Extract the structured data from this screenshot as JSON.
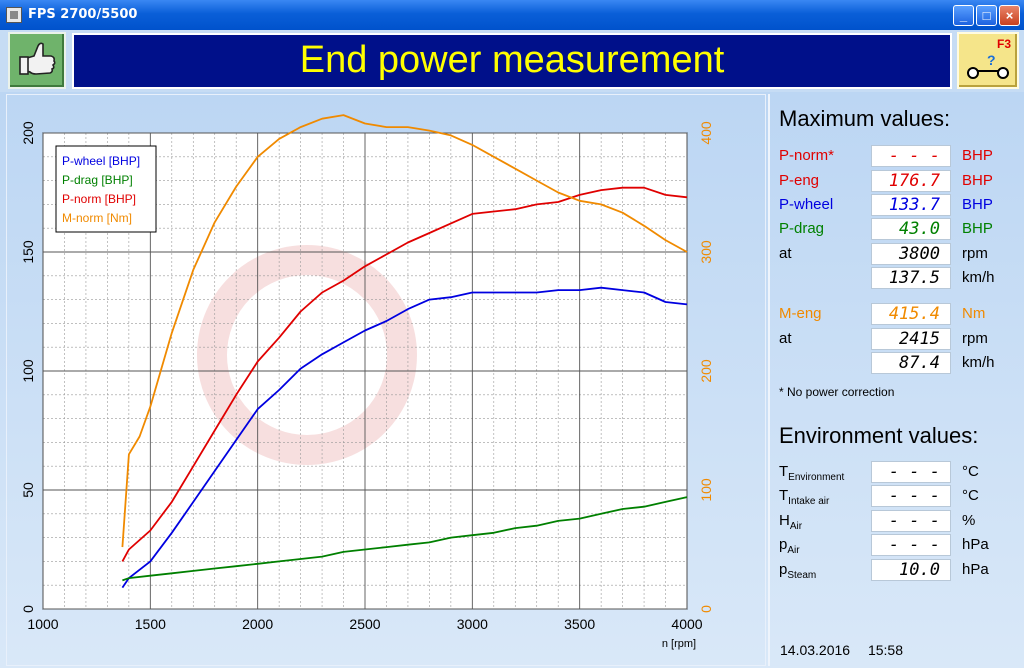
{
  "window": {
    "title": "FPS 2700/5500"
  },
  "header": {
    "title": "End power measurement",
    "f3_label": "F3"
  },
  "colors": {
    "p_wheel": "#0000e0",
    "p_drag": "#008000",
    "p_norm": "#e00000",
    "m_norm": "#f08a00",
    "banner_bg": "#00108a",
    "banner_text": "#ffff00"
  },
  "icons": {
    "thumb": "thumbs-up-icon",
    "f3": "roller-dyno-icon"
  },
  "max_values": {
    "title": "Maximum values:",
    "rows": [
      {
        "label": "P-norm*",
        "value": "- - - - .-",
        "unit": "BHP",
        "color": "red"
      },
      {
        "label": "P-eng",
        "value": "176.7",
        "unit": "BHP",
        "color": "red"
      },
      {
        "label": "P-wheel",
        "value": "133.7",
        "unit": "BHP",
        "color": "blue"
      },
      {
        "label": "P-drag",
        "value": "43.0",
        "unit": "BHP",
        "color": "green"
      },
      {
        "label": "at",
        "value": "3800",
        "unit": "rpm",
        "color": "black"
      },
      {
        "label": "",
        "value": "137.5",
        "unit": "km/h",
        "color": "black"
      },
      {
        "label": "M-eng",
        "value": "415.4",
        "unit": "Nm",
        "color": "orange"
      },
      {
        "label": "at",
        "value": "2415",
        "unit": "rpm",
        "color": "black"
      },
      {
        "label": "",
        "value": "87.4",
        "unit": "km/h",
        "color": "black"
      }
    ],
    "note": "* No power correction"
  },
  "environment": {
    "title": "Environment values:",
    "rows": [
      {
        "label": "T",
        "sub": "Environment",
        "value": "- - - - .-",
        "unit": "°C"
      },
      {
        "label": "T",
        "sub": "Intake air",
        "value": "- - - - .-",
        "unit": "°C"
      },
      {
        "label": "H",
        "sub": "Air",
        "value": "- - - - .-",
        "unit": "%"
      },
      {
        "label": "p",
        "sub": "Air",
        "value": "- - - - .-",
        "unit": "hPa"
      },
      {
        "label": "p",
        "sub": "Steam",
        "value": "10.0",
        "unit": "hPa"
      }
    ]
  },
  "status": {
    "date": "14.03.2016",
    "time": "15:58"
  },
  "chart_data": {
    "type": "line",
    "xlabel": "n [rpm]",
    "xlim": [
      1000,
      4000
    ],
    "ylim_left": [
      0,
      200
    ],
    "ylim_right": [
      0,
      400
    ],
    "x_ticks": [
      1000,
      1500,
      2000,
      2500,
      3000,
      3500,
      4000
    ],
    "y_left_ticks": [
      0,
      50,
      100,
      150,
      200
    ],
    "y_right_ticks": [
      0,
      100,
      200,
      300,
      400
    ],
    "grid": true,
    "legend_position": "top-left",
    "series": [
      {
        "name": "P-wheel [BHP]",
        "axis": "left",
        "color": "#0000e0",
        "x": [
          1370,
          1400,
          1500,
          1600,
          1700,
          1800,
          1900,
          2000,
          2100,
          2200,
          2300,
          2400,
          2500,
          2600,
          2700,
          2800,
          2900,
          3000,
          3100,
          3200,
          3300,
          3400,
          3500,
          3600,
          3700,
          3800,
          3900,
          4000
        ],
        "y": [
          9,
          13,
          20,
          32,
          45,
          58,
          71,
          84,
          92,
          101,
          107,
          112,
          117,
          121,
          126,
          130,
          131,
          133,
          133,
          133,
          133,
          134,
          134,
          135,
          134,
          133,
          129,
          128
        ]
      },
      {
        "name": "P-drag [BHP]",
        "axis": "left",
        "color": "#008000",
        "x": [
          1370,
          1400,
          1500,
          1600,
          1700,
          1800,
          1900,
          2000,
          2100,
          2200,
          2300,
          2400,
          2500,
          2600,
          2700,
          2800,
          2900,
          3000,
          3100,
          3200,
          3300,
          3400,
          3500,
          3600,
          3700,
          3800,
          3900,
          4000
        ],
        "y": [
          12,
          13,
          14,
          15,
          16,
          17,
          18,
          19,
          20,
          21,
          22,
          24,
          25,
          26,
          27,
          28,
          30,
          31,
          32,
          34,
          35,
          37,
          38,
          40,
          42,
          43,
          45,
          47
        ]
      },
      {
        "name": "P-norm [BHP]",
        "axis": "left",
        "color": "#e00000",
        "x": [
          1370,
          1400,
          1500,
          1600,
          1700,
          1800,
          1900,
          2000,
          2100,
          2200,
          2300,
          2400,
          2500,
          2600,
          2700,
          2800,
          2900,
          3000,
          3100,
          3200,
          3300,
          3400,
          3500,
          3600,
          3700,
          3800,
          3900,
          4000
        ],
        "y": [
          20,
          25,
          33,
          45,
          60,
          75,
          90,
          104,
          114,
          125,
          133,
          138,
          144,
          149,
          154,
          158,
          162,
          166,
          167,
          168,
          170,
          171,
          174,
          176,
          177,
          177,
          174,
          173
        ]
      },
      {
        "name": "M-norm [Nm]",
        "axis": "right",
        "color": "#f08a00",
        "x": [
          1370,
          1400,
          1450,
          1500,
          1600,
          1700,
          1800,
          1900,
          2000,
          2100,
          2200,
          2300,
          2400,
          2500,
          2600,
          2700,
          2800,
          2900,
          3000,
          3100,
          3200,
          3300,
          3400,
          3500,
          3600,
          3700,
          3800,
          3900,
          4000
        ],
        "y": [
          52,
          130,
          145,
          170,
          232,
          285,
          325,
          355,
          380,
          395,
          405,
          412,
          415,
          408,
          405,
          405,
          402,
          398,
          390,
          380,
          370,
          360,
          350,
          343,
          340,
          333,
          322,
          310,
          300
        ]
      }
    ]
  }
}
